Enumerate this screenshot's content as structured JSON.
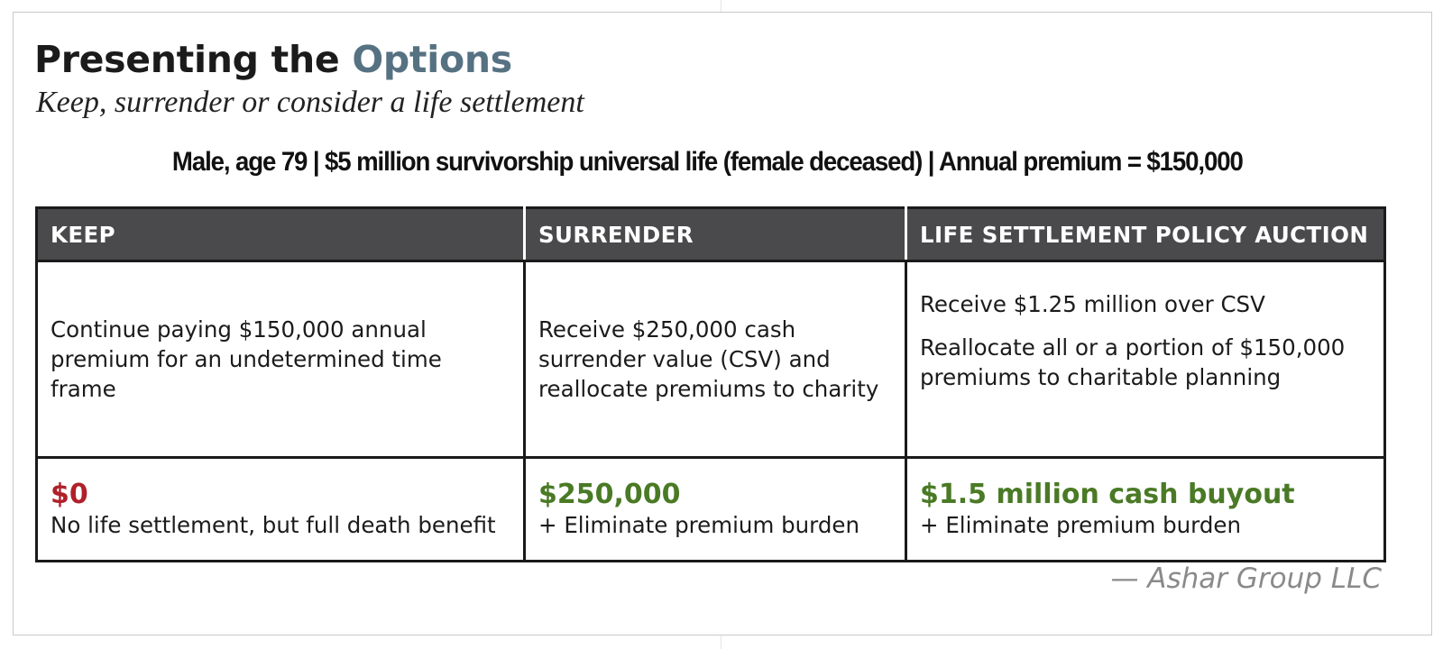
{
  "header": {
    "title_main": "Presenting the ",
    "title_accent": "Options",
    "subtitle": "Keep, surrender or consider a life settlement",
    "caption": "Male, age 79 | $5 million survivorship universal life (female deceased) | Annual premium = $150,000"
  },
  "table": {
    "columns": [
      "KEEP",
      "SURRENDER",
      "LIFE SETTLEMENT POLICY AUCTION"
    ],
    "descriptions": [
      {
        "lines": [
          "Continue paying $150,000 annual",
          "premium for an undetermined time",
          "frame"
        ]
      },
      {
        "lines": [
          "Receive $250,000 cash",
          "surrender value (CSV) and",
          "reallocate premiums to charity"
        ]
      },
      {
        "para1": "Receive $1.25 million over CSV",
        "para2_lines": [
          "Reallocate all or a portion of $150,000",
          "premiums to charitable planning"
        ]
      }
    ],
    "outcomes": [
      {
        "value": "$0",
        "note": "No life settlement, but full death benefit"
      },
      {
        "value": "$250,000",
        "note": "+ Eliminate premium burden"
      },
      {
        "value": "$1.5 million cash buyout",
        "note": "+ Eliminate premium burden"
      }
    ]
  },
  "credit": "— Ashar Group LLC",
  "colors": {
    "title_accent": "#567282",
    "header_bg": "#4a4a4c",
    "negative_value": "#b0202a",
    "positive_value": "#4a7a25",
    "credit_text": "#8a8a8a"
  }
}
